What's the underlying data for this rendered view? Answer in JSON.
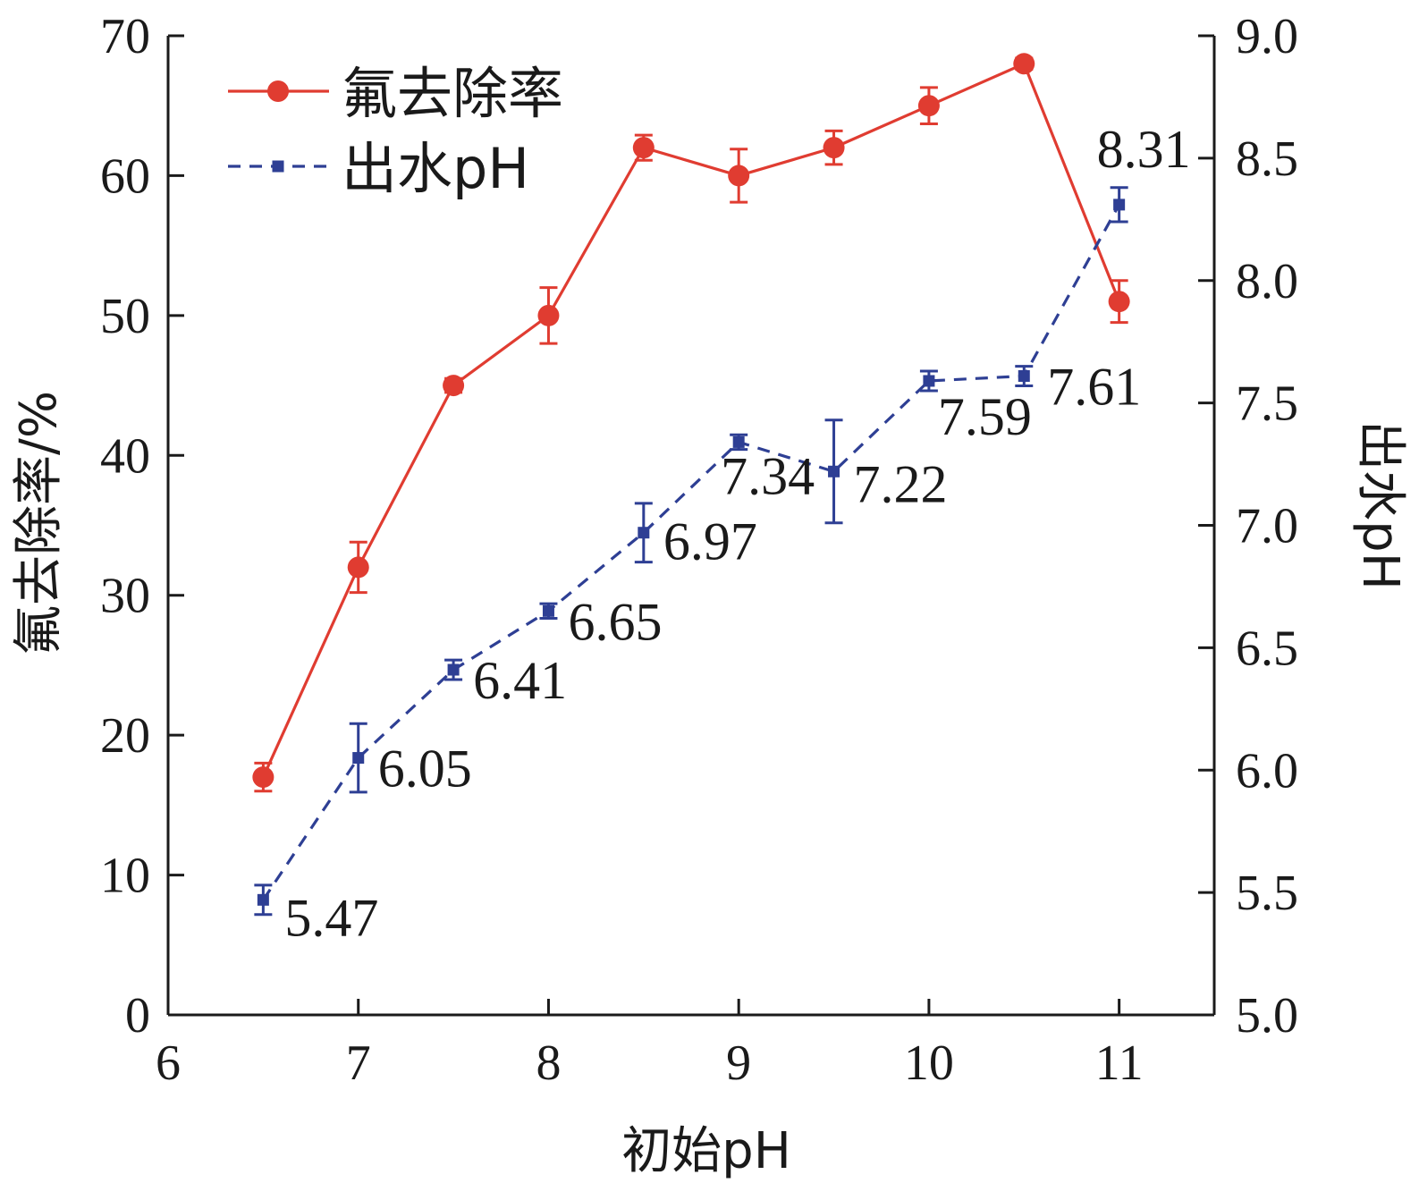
{
  "chart_data": {
    "type": "line",
    "xlabel": "初始pH",
    "ylabel": "氟去除率/%",
    "y2label": "出水pH",
    "xlim": [
      6,
      11.5
    ],
    "ylim": [
      0,
      70
    ],
    "y2lim": [
      5.0,
      9.0
    ],
    "x_ticks": [
      6,
      7,
      8,
      9,
      10,
      11
    ],
    "y_ticks": [
      0,
      10,
      20,
      30,
      40,
      50,
      60,
      70
    ],
    "y2_ticks": [
      "5.0",
      "5.5",
      "6.0",
      "6.5",
      "7.0",
      "7.5",
      "8.0",
      "8.5",
      "9.0"
    ],
    "legend_position": "top-left",
    "grid": false,
    "x": [
      6.5,
      7,
      7.5,
      8,
      8.5,
      9,
      9.5,
      10,
      10.5,
      11
    ],
    "series": [
      {
        "name": "氟去除率",
        "axis": "left",
        "color": "#e03c31",
        "style": "solid",
        "marker": "circle",
        "values": [
          17,
          32,
          45,
          50,
          62,
          60,
          62,
          65,
          68,
          51
        ],
        "errors": [
          1.0,
          1.8,
          0.5,
          2.0,
          0.9,
          1.9,
          1.2,
          1.3,
          0.4,
          1.5
        ]
      },
      {
        "name": "出水pH",
        "axis": "right",
        "color": "#2e3f94",
        "style": "dashed",
        "marker": "square",
        "values": [
          5.47,
          6.05,
          6.41,
          6.65,
          6.97,
          7.34,
          7.22,
          7.59,
          7.61,
          8.31
        ],
        "errors": [
          0.06,
          0.14,
          0.04,
          0.03,
          0.12,
          0.03,
          0.21,
          0.04,
          0.04,
          0.07
        ],
        "labels": [
          "5.47",
          "6.05",
          "6.41",
          "6.65",
          "6.97",
          "7.34",
          "7.22",
          "7.59",
          "7.61",
          "8.31"
        ]
      }
    ]
  }
}
